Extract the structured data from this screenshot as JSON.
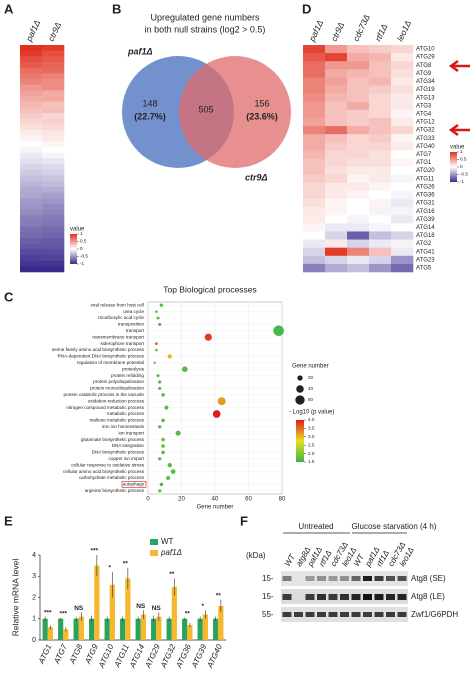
{
  "chart_data": [
    {
      "type": "heatmap",
      "label": "A",
      "columns": [
        "paf1Δ",
        "ctr9Δ"
      ],
      "values": [
        [
          1,
          0.95
        ],
        [
          0.95,
          0.85
        ],
        [
          0.85,
          0.8
        ],
        [
          0.8,
          0.75
        ],
        [
          0.7,
          0.72
        ],
        [
          0.65,
          0.6
        ],
        [
          0.6,
          0.55
        ],
        [
          0.5,
          0.55
        ],
        [
          0.45,
          0.4
        ],
        [
          0.4,
          0.42
        ],
        [
          0.35,
          0.3
        ],
        [
          0.3,
          0.32
        ],
        [
          0.25,
          0.2
        ],
        [
          0.2,
          0.22
        ],
        [
          0.15,
          0.18
        ],
        [
          0.1,
          0.12
        ],
        [
          0.05,
          0.1
        ],
        [
          0,
          0.05
        ],
        [
          -0.05,
          0
        ],
        [
          -0.1,
          -0.05
        ],
        [
          -0.15,
          -0.12
        ],
        [
          -0.2,
          -0.18
        ],
        [
          -0.25,
          -0.22
        ],
        [
          -0.3,
          -0.28
        ],
        [
          -0.35,
          -0.32
        ],
        [
          -0.4,
          -0.38
        ],
        [
          -0.42,
          -0.45
        ],
        [
          -0.48,
          -0.5
        ],
        [
          -0.5,
          -0.55
        ],
        [
          -0.55,
          -0.58
        ],
        [
          -0.6,
          -0.62
        ],
        [
          -0.62,
          -0.65
        ],
        [
          -0.68,
          -0.7
        ],
        [
          -0.7,
          -0.72
        ],
        [
          -0.75,
          -0.78
        ],
        [
          -0.8,
          -0.8
        ],
        [
          -0.85,
          -0.85
        ],
        [
          -0.9,
          -0.88
        ],
        [
          -0.95,
          -0.95
        ],
        [
          -1,
          -1
        ]
      ],
      "colors": [
        "#3b2a8c",
        "#ffffff",
        "#e0301e"
      ],
      "vlim": [
        -1,
        1
      ],
      "colorbar": {
        "title": "value",
        "ticks": [
          1,
          0.5,
          0,
          -0.5,
          -1
        ]
      }
    },
    {
      "type": "venn",
      "label": "B",
      "title": [
        "Upregulated gene numbers",
        "in both null strains (log2 > 0.5)"
      ],
      "sets": [
        {
          "name": "paf1Δ",
          "color": "#5b7fc4",
          "only": 148,
          "only_label": "(22.7%)"
        },
        {
          "name": "ctr9Δ",
          "color": "#e06a6a",
          "only": 156,
          "only_label": "(23.6%)"
        }
      ],
      "overlap": 505
    },
    {
      "type": "dot",
      "label": "C",
      "title": "Top Biological processes",
      "xlabel": "Gene number",
      "categories": [
        "viral release from host cell",
        "urea cycle",
        "tricarboxylic acid cycle",
        "transposition",
        "transport",
        "transmembrane transport",
        "siderophore transport",
        "serine family amino acid biosynthetic process",
        "RNA-dependent DNA biosynthetic process",
        "regulation of membrane potential",
        "proteolysis",
        "protein refolding",
        "protein polyubiquitination",
        "protein monoubiquitination",
        "protein catabolic process in the vacuole",
        "oxidation-reduction process",
        "nitrogen compound metabolic process",
        "metabolic process",
        "maltose metabolic process",
        "iron ion homeostasis",
        "ion transport",
        "glutamate biosynthetic process",
        "DNA integration",
        "DNA biosynthetic process",
        "copper ion import",
        "cellular response to oxidative stress",
        "cellular amino acid biosynthetic process",
        "carbohydrate metabolic process",
        "autophagy",
        "arginine biosynthetic process"
      ],
      "values": [
        8,
        5,
        6,
        7,
        78,
        36,
        5,
        5,
        13,
        4,
        22,
        6,
        7,
        7,
        9,
        44,
        11,
        41,
        9,
        7,
        18,
        9,
        9,
        9,
        7,
        13,
        15,
        12,
        8,
        7
      ],
      "pvalues": [
        1.7,
        1.8,
        1.7,
        1.6,
        1.6,
        3.8,
        3.6,
        1.8,
        3.0,
        1.7,
        1.7,
        1.6,
        1.7,
        1.7,
        1.8,
        3.2,
        1.7,
        4.0,
        1.7,
        1.6,
        1.7,
        1.8,
        1.7,
        1.7,
        1.6,
        1.7,
        1.7,
        1.8,
        1.6,
        1.7
      ],
      "highlight": 28,
      "xlim": [
        0,
        80
      ],
      "xticks": [
        0,
        20,
        40,
        60,
        80
      ],
      "size_legend": {
        "title": "Gene number",
        "values": [
          20,
          40,
          60
        ]
      },
      "color_legend": {
        "title": "- Log10 (p value)",
        "colors": [
          "#3cb44b",
          "#e8e020",
          "#e31a1c"
        ],
        "lim": [
          1.5,
          4
        ],
        "ticks": [
          {
            "value": 4,
            "label": "4.0"
          },
          {
            "value": 3.5,
            "label": "3.5"
          },
          {
            "value": 3,
            "label": "3.0"
          },
          {
            "value": 2.5,
            "label": "2.5"
          },
          {
            "value": 2,
            "label": "2.0"
          },
          {
            "value": 1.5,
            "label": "1.5"
          }
        ]
      }
    },
    {
      "type": "heatmap",
      "label": "D",
      "columns": [
        "paf1Δ",
        "ctr9Δ",
        "cdc73Δ",
        "rtf1Δ",
        "leo1Δ"
      ],
      "rows": [
        "ATG10",
        "ATG29",
        "ATG8",
        "ATG9",
        "ATG34",
        "ATG19",
        "ATG13",
        "ATG3",
        "ATG4",
        "ATG12",
        "ATG32",
        "ATG33",
        "ATG40",
        "ATG7",
        "ATG1",
        "ATG20",
        "ATG11",
        "ATG26",
        "ATG36",
        "ATG31",
        "ATG16",
        "ATG39",
        "ATG14",
        "ATG18",
        "ATG2",
        "ATG41",
        "ATG23",
        "ATG5"
      ],
      "values": [
        [
          0.9,
          0.5,
          0.3,
          0.25,
          0.2
        ],
        [
          0.8,
          0.9,
          0.4,
          0.35,
          0.1
        ],
        [
          0.7,
          0.5,
          0.5,
          0.3,
          0.2
        ],
        [
          0.7,
          0.4,
          0.35,
          0.3,
          0.15
        ],
        [
          0.6,
          0.45,
          0.3,
          0.35,
          0.1
        ],
        [
          0.6,
          0.4,
          0.3,
          0.25,
          0.15
        ],
        [
          0.55,
          0.35,
          0.3,
          0.2,
          0.1
        ],
        [
          0.5,
          0.3,
          0.4,
          0.2,
          0.1
        ],
        [
          0.5,
          0.3,
          0.25,
          0.2,
          0.05
        ],
        [
          0.45,
          0.3,
          0.25,
          0.3,
          0.1
        ],
        [
          0.6,
          0.7,
          0.4,
          0.3,
          0.2
        ],
        [
          0.4,
          0.3,
          0.2,
          0.25,
          0.05
        ],
        [
          0.4,
          0.25,
          0.2,
          0.2,
          0.1
        ],
        [
          0.35,
          0.2,
          0.2,
          0.15,
          0
        ],
        [
          0.3,
          0.2,
          0.15,
          0.15,
          0.05
        ],
        [
          0.3,
          0.15,
          0.1,
          0.1,
          0
        ],
        [
          0.25,
          0.2,
          0.05,
          0.1,
          -0.05
        ],
        [
          0.2,
          0.1,
          0.1,
          0.05,
          0
        ],
        [
          0.2,
          0.1,
          0.05,
          0,
          -0.05
        ],
        [
          0.15,
          0.05,
          0,
          0.05,
          -0.1
        ],
        [
          0.1,
          0.05,
          0,
          -0.05,
          -0.05
        ],
        [
          0.1,
          0,
          -0.05,
          0,
          -0.1
        ],
        [
          0.05,
          -0.1,
          -0.1,
          -0.05,
          0
        ],
        [
          0,
          -0.2,
          -0.75,
          -0.3,
          -0.2
        ],
        [
          -0.1,
          0.1,
          -0.2,
          -0.1,
          -0.05
        ],
        [
          -0.2,
          0.95,
          0.6,
          0.3,
          -0.1
        ],
        [
          -0.3,
          -0.2,
          -0.1,
          -0.2,
          -0.5
        ],
        [
          -0.6,
          -0.4,
          -0.3,
          -0.5,
          -0.7
        ]
      ],
      "colors": [
        "#3b2a8c",
        "#ffffff",
        "#e0301e"
      ],
      "vlim": [
        -1,
        1
      ],
      "colorbar": {
        "title": "value",
        "ticks": [
          1,
          0.5,
          0,
          -0.5,
          -1
        ]
      }
    },
    {
      "type": "bar",
      "label": "E",
      "ylabel": "Relative mRNA level",
      "categories": [
        "ATG1",
        "ATG7",
        "ATG8",
        "ATG9",
        "ATG10",
        "ATG11",
        "ATG14",
        "ATG29",
        "ATG32",
        "ATG36",
        "ATG39",
        "ATG40"
      ],
      "series": [
        {
          "name": "WT",
          "color": "#2ca25f",
          "values": [
            1,
            1,
            1,
            1,
            1,
            1,
            1,
            1,
            1,
            1,
            1,
            1
          ],
          "errors": [
            0.1,
            0.05,
            0.1,
            0.15,
            0.1,
            0.1,
            0.1,
            0.15,
            0.1,
            0.05,
            0.1,
            0.1
          ]
        },
        {
          "name": "paf1Δ",
          "color": "#f5b82e",
          "values": [
            0.6,
            0.5,
            1.1,
            3.5,
            2.6,
            2.9,
            1.2,
            1.1,
            2.5,
            0.7,
            1.2,
            1.6
          ],
          "errors": [
            0.1,
            0.1,
            0.2,
            0.5,
            0.6,
            0.5,
            0.2,
            0.2,
            0.4,
            0.1,
            0.2,
            0.3
          ]
        }
      ],
      "annotations": [
        "***",
        "***",
        "NS",
        "***",
        "*",
        "**",
        "NS",
        "NS",
        "**",
        "**",
        "*",
        "**"
      ],
      "ylim": [
        0,
        4
      ],
      "yticks": [
        0,
        1,
        2,
        3,
        4
      ]
    }
  ],
  "blot": {
    "label": "F",
    "groups": [
      "Untreated",
      "Glucose starvation (4 h)"
    ],
    "lanes": [
      "WT",
      "atg8Δ",
      "paf1Δ",
      "rtf1Δ",
      "cdc73Δ",
      "leo1Δ",
      "WT",
      "paf1Δ",
      "rtf1Δ",
      "cdc73Δ",
      "leo1Δ"
    ],
    "unit": "(kDa)",
    "markers": [
      "15-",
      "15-",
      "55-"
    ],
    "bands": [
      "Atg8 (SE)",
      "Atg8 (LE)",
      "Zwf1/G6PDH"
    ]
  }
}
